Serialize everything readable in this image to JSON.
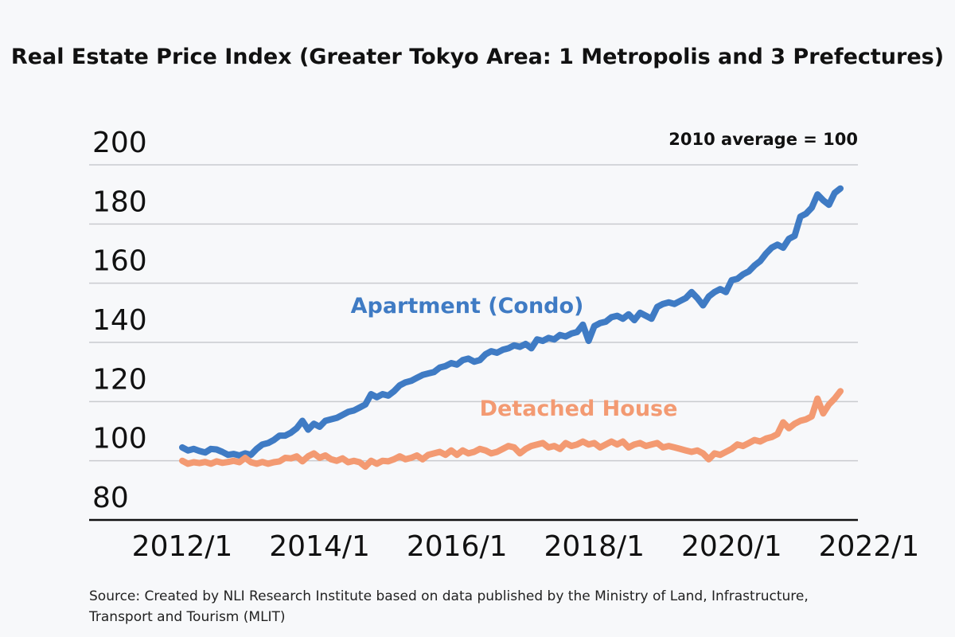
{
  "chart_data": {
    "type": "line",
    "title": "Real Estate Price Index (Greater Tokyo Area: 1 Metropolis and 3 Prefectures)",
    "note": "2010 average = 100",
    "source": "Source: Created by NLI Research Institute based on data published by the Ministry of Land, Infrastructure, Transport and Tourism (MLIT)",
    "xlabel": "",
    "ylabel": "",
    "ylim": [
      80,
      200
    ],
    "yticks": [
      "200",
      "180",
      "160",
      "140",
      "120",
      "100",
      "80"
    ],
    "xticks": [
      "2012/1",
      "2014/1",
      "2016/1",
      "2018/1",
      "2020/1",
      "2022/1"
    ],
    "grid": true,
    "x_start": "2012/1",
    "x_end": "2022/12",
    "series": [
      {
        "name": "Apartment (Condo)",
        "color": "#3f7bc4",
        "values": [
          104.5,
          103.5,
          104.0,
          103.3,
          102.8,
          104.0,
          103.8,
          103.0,
          102.0,
          102.3,
          101.8,
          102.5,
          102.0,
          104.0,
          105.5,
          106.0,
          107.0,
          108.5,
          108.5,
          109.5,
          111.0,
          113.5,
          110.5,
          112.5,
          111.5,
          113.5,
          114.0,
          114.5,
          115.5,
          116.5,
          117.0,
          118.0,
          119.0,
          122.5,
          121.5,
          122.5,
          122.0,
          123.5,
          125.5,
          126.5,
          127.0,
          128.0,
          129.0,
          129.5,
          130.0,
          131.5,
          132.0,
          133.0,
          132.5,
          134.0,
          134.5,
          133.5,
          134.0,
          136.0,
          137.0,
          136.5,
          137.5,
          138.0,
          139.0,
          138.5,
          139.5,
          138.0,
          141.0,
          140.5,
          141.5,
          141.0,
          142.5,
          142.0,
          143.0,
          143.5,
          146.0,
          140.5,
          145.5,
          146.5,
          147.0,
          148.5,
          149.0,
          148.0,
          149.5,
          147.5,
          150.0,
          149.0,
          148.0,
          152.0,
          153.0,
          153.5,
          153.0,
          154.0,
          155.0,
          157.0,
          155.0,
          152.5,
          155.5,
          157.0,
          158.0,
          157.0,
          161.0,
          161.5,
          163.0,
          164.0,
          166.0,
          167.5,
          170.0,
          172.0,
          173.0,
          172.0,
          175.0,
          176.0,
          182.5,
          183.5,
          185.5,
          190.0,
          188.0,
          186.5,
          190.5,
          192.0
        ]
      },
      {
        "name": "Detached House",
        "color": "#f39a72",
        "values": [
          100.0,
          99.0,
          99.5,
          99.2,
          99.6,
          99.0,
          99.8,
          99.3,
          99.6,
          100.0,
          99.5,
          101.0,
          99.5,
          99.0,
          99.6,
          99.0,
          99.5,
          99.8,
          101.0,
          100.8,
          101.5,
          99.8,
          101.5,
          102.5,
          101.0,
          101.8,
          100.5,
          100.0,
          100.8,
          99.5,
          100.0,
          99.5,
          98.0,
          100.0,
          99.0,
          100.0,
          99.8,
          100.5,
          101.5,
          100.5,
          101.0,
          101.8,
          100.5,
          102.0,
          102.5,
          103.0,
          102.0,
          103.5,
          102.0,
          103.5,
          102.5,
          103.0,
          104.0,
          103.5,
          102.5,
          103.0,
          104.0,
          105.0,
          104.5,
          102.5,
          104.0,
          105.0,
          105.5,
          106.0,
          104.5,
          105.0,
          104.0,
          106.0,
          105.0,
          105.5,
          106.5,
          105.5,
          106.0,
          104.5,
          105.5,
          106.5,
          105.5,
          106.5,
          104.5,
          105.5,
          106.0,
          105.0,
          105.5,
          106.0,
          104.5,
          105.0,
          104.5,
          104.0,
          103.5,
          103.0,
          103.5,
          102.5,
          100.5,
          102.5,
          102.0,
          103.0,
          104.0,
          105.5,
          105.0,
          106.0,
          107.0,
          106.5,
          107.5,
          108.0,
          109.0,
          113.0,
          111.0,
          112.5,
          113.5,
          114.0,
          115.0,
          121.0,
          116.0,
          119.0,
          121.0,
          123.5
        ]
      }
    ]
  }
}
